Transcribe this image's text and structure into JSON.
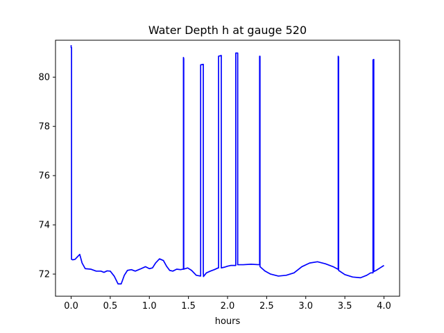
{
  "chart_data": {
    "type": "line",
    "title": "Water Depth h at gauge 520",
    "xlabel": "hours",
    "ylabel": "",
    "xlim": [
      -0.2,
      4.2
    ],
    "ylim": [
      71.1,
      81.5
    ],
    "grid": false,
    "legend": "none",
    "x_ticks": [
      0.0,
      0.5,
      1.0,
      1.5,
      2.0,
      2.5,
      3.0,
      3.5,
      4.0
    ],
    "x_tick_labels": [
      "0.0",
      "0.5",
      "1.0",
      "1.5",
      "2.0",
      "2.5",
      "3.0",
      "3.5",
      "4.0"
    ],
    "y_ticks": [
      72,
      74,
      76,
      78,
      80
    ],
    "y_tick_labels": [
      "72",
      "74",
      "76",
      "78",
      "80"
    ],
    "series": [
      {
        "color": "#0000ff",
        "x": [
          0.0,
          0.0,
          0.005,
          0.005,
          0.02,
          0.05,
          0.08,
          0.11,
          0.14,
          0.18,
          0.25,
          0.32,
          0.38,
          0.42,
          0.46,
          0.5,
          0.55,
          0.6,
          0.64,
          0.68,
          0.72,
          0.77,
          0.82,
          0.88,
          0.95,
          1.0,
          1.04,
          1.08,
          1.13,
          1.18,
          1.22,
          1.26,
          1.3,
          1.35,
          1.4,
          1.43,
          1.436,
          1.436,
          1.44,
          1.44,
          1.49,
          1.54,
          1.6,
          1.655,
          1.656,
          1.656,
          1.69,
          1.69,
          1.692,
          1.692,
          1.73,
          1.78,
          1.83,
          1.88,
          1.885,
          1.885,
          1.92,
          1.92,
          1.96,
          2.0,
          2.04,
          2.1,
          2.105,
          2.105,
          2.13,
          2.13,
          2.2,
          2.3,
          2.405,
          2.41,
          2.41,
          2.415,
          2.415,
          2.48,
          2.55,
          2.65,
          2.75,
          2.85,
          2.95,
          3.05,
          3.15,
          3.25,
          3.35,
          3.41,
          3.415,
          3.415,
          3.42,
          3.42,
          3.5,
          3.6,
          3.7,
          3.78,
          3.83,
          3.855,
          3.86,
          3.86,
          3.87,
          3.87,
          3.9,
          3.95,
          4.0
        ],
        "y": [
          81.3,
          81.2,
          81.2,
          72.6,
          72.58,
          72.6,
          72.7,
          72.8,
          72.45,
          72.22,
          72.2,
          72.12,
          72.12,
          72.07,
          72.13,
          72.12,
          71.92,
          71.6,
          71.6,
          71.95,
          72.15,
          72.18,
          72.12,
          72.2,
          72.3,
          72.22,
          72.25,
          72.45,
          72.62,
          72.55,
          72.32,
          72.15,
          72.12,
          72.2,
          72.18,
          72.2,
          72.2,
          80.8,
          80.75,
          72.2,
          72.25,
          72.15,
          71.95,
          71.92,
          71.92,
          80.5,
          80.52,
          72.0,
          72.0,
          71.9,
          72.05,
          72.12,
          72.18,
          72.25,
          72.25,
          80.85,
          80.88,
          72.25,
          72.28,
          72.32,
          72.35,
          72.35,
          72.35,
          80.98,
          80.98,
          72.38,
          72.38,
          72.4,
          72.38,
          72.38,
          80.85,
          80.85,
          72.3,
          72.12,
          72.0,
          71.92,
          71.95,
          72.05,
          72.3,
          72.45,
          72.5,
          72.42,
          72.3,
          72.2,
          72.2,
          80.85,
          80.82,
          72.15,
          71.98,
          71.88,
          71.85,
          71.95,
          72.05,
          72.05,
          72.05,
          80.7,
          80.72,
          72.1,
          72.15,
          72.25,
          72.35
        ]
      }
    ]
  }
}
